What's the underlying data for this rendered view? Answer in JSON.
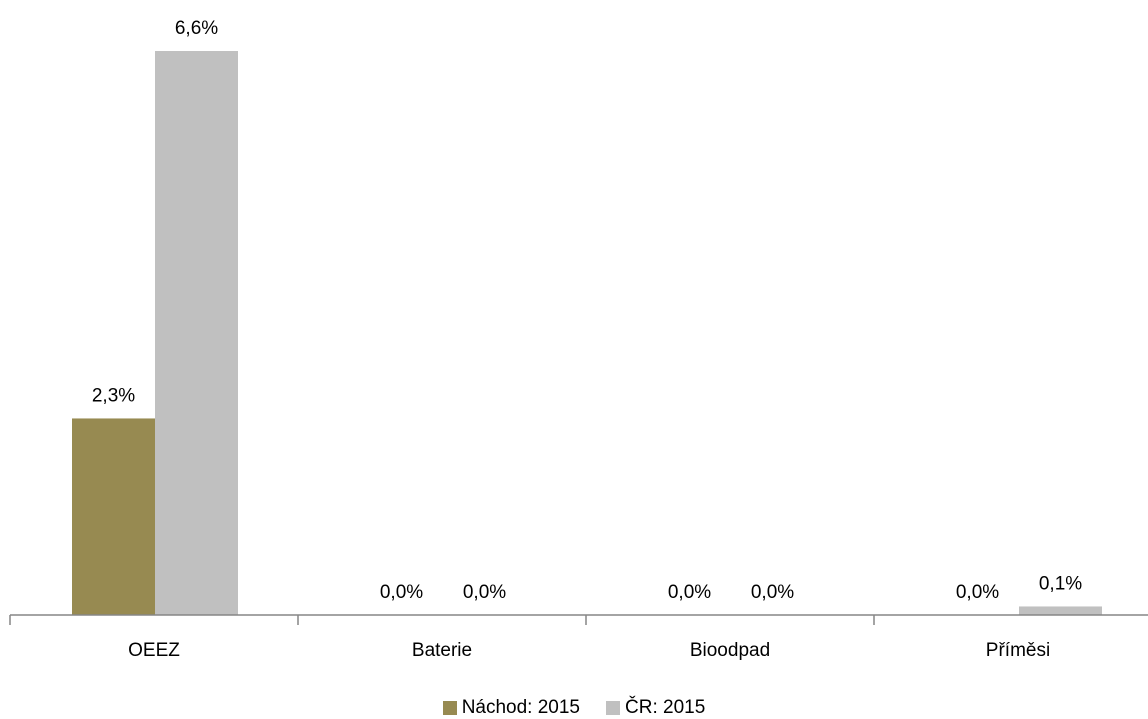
{
  "chart_data": {
    "type": "bar",
    "categories": [
      "OEEZ",
      "Baterie",
      "Bioodpad",
      "Příměsi"
    ],
    "series": [
      {
        "name": "Náchod: 2015",
        "values": [
          2.3,
          0.0,
          0.0,
          0.0
        ],
        "labels": [
          "2,3%",
          "0,0%",
          "0,0%",
          "0,0%"
        ],
        "color": "#978a51"
      },
      {
        "name": "ČR: 2015",
        "values": [
          6.6,
          0.0,
          0.0,
          0.1
        ],
        "labels": [
          "6,6%",
          "0,0%",
          "0,0%",
          "0,1%"
        ],
        "color": "#c0c0c0"
      }
    ],
    "ylim": [
      0,
      6.6
    ],
    "grid": false,
    "legend": "bottom-center"
  }
}
